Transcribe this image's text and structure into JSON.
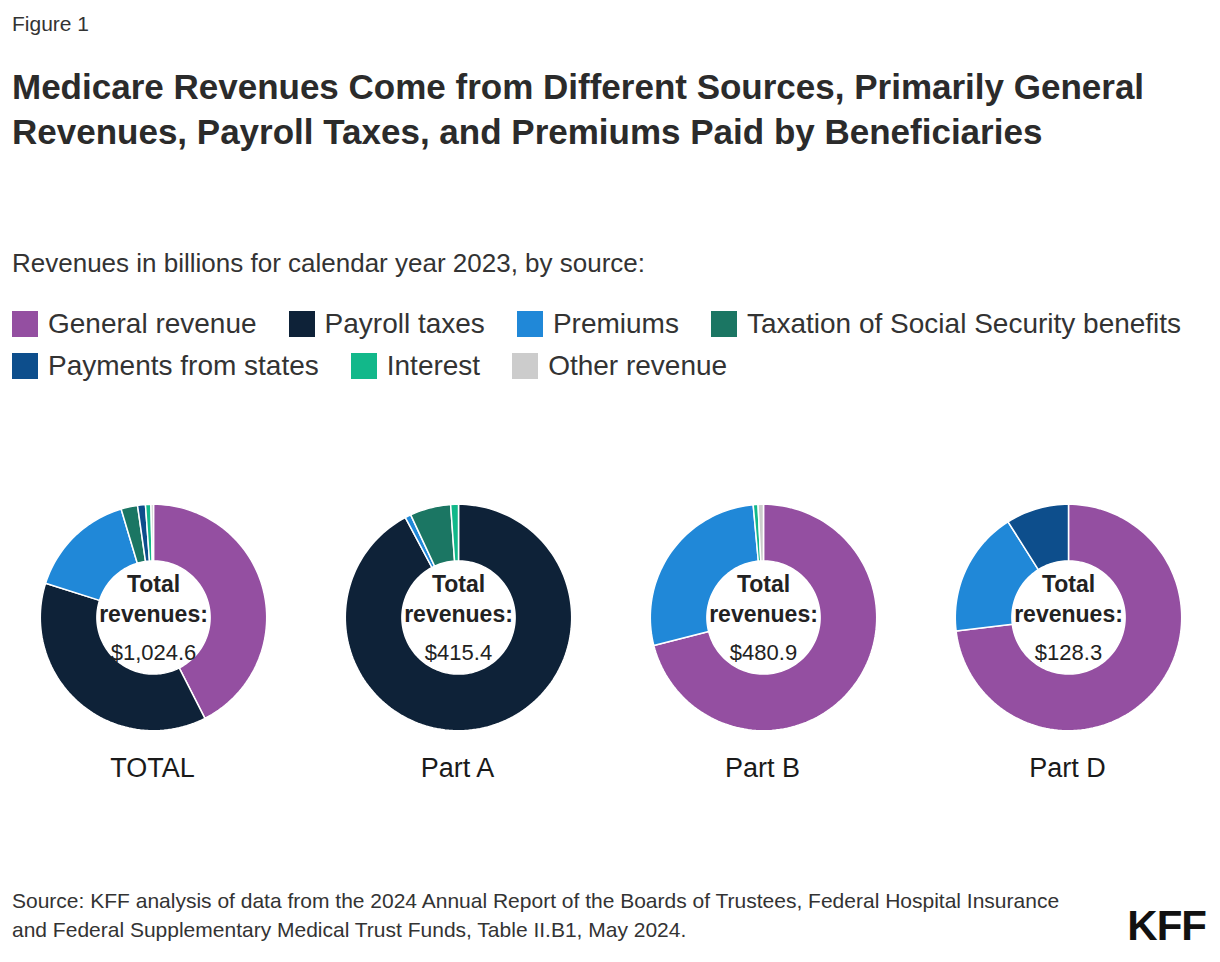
{
  "figure_label": "Figure 1",
  "title": "Medicare Revenues Come from Different Sources, Primarily General Revenues, Payroll Taxes, and Premiums Paid by Beneficiaries",
  "subtitle": "Revenues in billions for calendar year 2023, by source:",
  "legend_entries": [
    {
      "name": "General revenue",
      "color": "#944fa1"
    },
    {
      "name": "Payroll taxes",
      "color": "#0e2238"
    },
    {
      "name": "Premiums",
      "color": "#2088d8"
    },
    {
      "name": "Taxation of Social Security benefits",
      "color": "#1b7663"
    },
    {
      "name": "Payments from states",
      "color": "#0d4e8c"
    },
    {
      "name": "Interest",
      "color": "#12b88a"
    },
    {
      "name": "Other revenue",
      "color": "#cccccc"
    }
  ],
  "source": "Source: KFF analysis of data from the 2024 Annual Report of the Boards of Trustees, Federal Hospital Insurance and Federal Supplementary Medical Trust Funds, Table II.B1, May 2024.",
  "logo": "KFF",
  "chart_data": [
    {
      "type": "pie",
      "title": "TOTAL",
      "center_label": "Total revenues:",
      "total": {
        "value": 1024.6,
        "label": "$1,024.6"
      },
      "categories": [
        "General revenue",
        "Payroll taxes",
        "Premiums",
        "Taxation of Social Security benefits",
        "Payments from states",
        "Interest",
        "Other revenue"
      ],
      "values": [
        435.4,
        383.1,
        158.8,
        24.2,
        11.5,
        7.9,
        3.7
      ],
      "colors": [
        "#944fa1",
        "#0e2238",
        "#2088d8",
        "#1b7663",
        "#0d4e8c",
        "#12b88a",
        "#cccccc"
      ]
    },
    {
      "type": "pie",
      "title": "Part A",
      "center_label": "Total revenues:",
      "total": {
        "value": 415.4,
        "label": "$415.4"
      },
      "categories": [
        "Payroll taxes",
        "Premiums",
        "Taxation of Social Security benefits",
        "Interest"
      ],
      "values": [
        383.1,
        3.5,
        24.2,
        4.6
      ],
      "colors": [
        "#0e2238",
        "#2088d8",
        "#1b7663",
        "#12b88a"
      ]
    },
    {
      "type": "pie",
      "title": "Part B",
      "center_label": "Total revenues:",
      "total": {
        "value": 480.9,
        "label": "$480.9"
      },
      "categories": [
        "General revenue",
        "Premiums",
        "Interest",
        "Other revenue"
      ],
      "values": [
        341.6,
        132.3,
        3.3,
        3.7
      ],
      "colors": [
        "#944fa1",
        "#2088d8",
        "#12b88a",
        "#cccccc"
      ]
    },
    {
      "type": "pie",
      "title": "Part D",
      "center_label": "Total revenues:",
      "total": {
        "value": 128.3,
        "label": "$128.3"
      },
      "categories": [
        "General revenue",
        "Premiums",
        "Payments from states"
      ],
      "values": [
        93.8,
        23,
        11.5
      ],
      "colors": [
        "#944fa1",
        "#2088d8",
        "#0d4e8c"
      ]
    }
  ]
}
